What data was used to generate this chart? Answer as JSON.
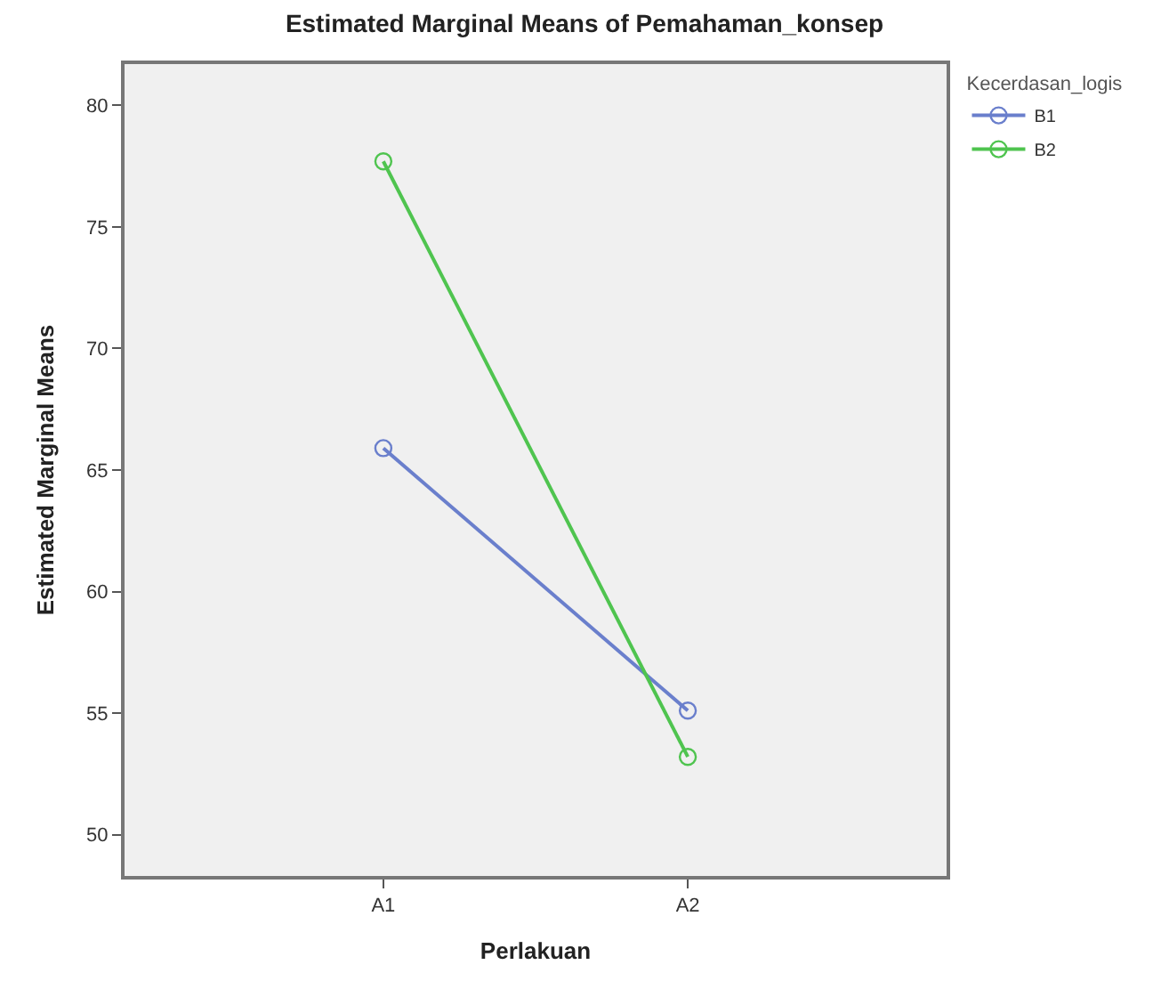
{
  "chart_data": {
    "type": "line",
    "title": "Estimated Marginal Means of Pemahaman_konsep",
    "xlabel": "Perlakuan",
    "ylabel": "Estimated Marginal Means",
    "legend_title": "Kecerdasan_logis",
    "categories": [
      "A1",
      "A2"
    ],
    "series": [
      {
        "name": "B1",
        "color": "#6a7fcc",
        "values": [
          65.9,
          55.1
        ]
      },
      {
        "name": "B2",
        "color": "#4fc44f",
        "values": [
          77.7,
          53.2
        ]
      }
    ],
    "ylim": [
      48.3,
      81.7
    ],
    "yticks": [
      50,
      55,
      60,
      65,
      70,
      75,
      80
    ],
    "grid": false,
    "legend": "top right",
    "marker": "circle",
    "line_style": "solid"
  }
}
